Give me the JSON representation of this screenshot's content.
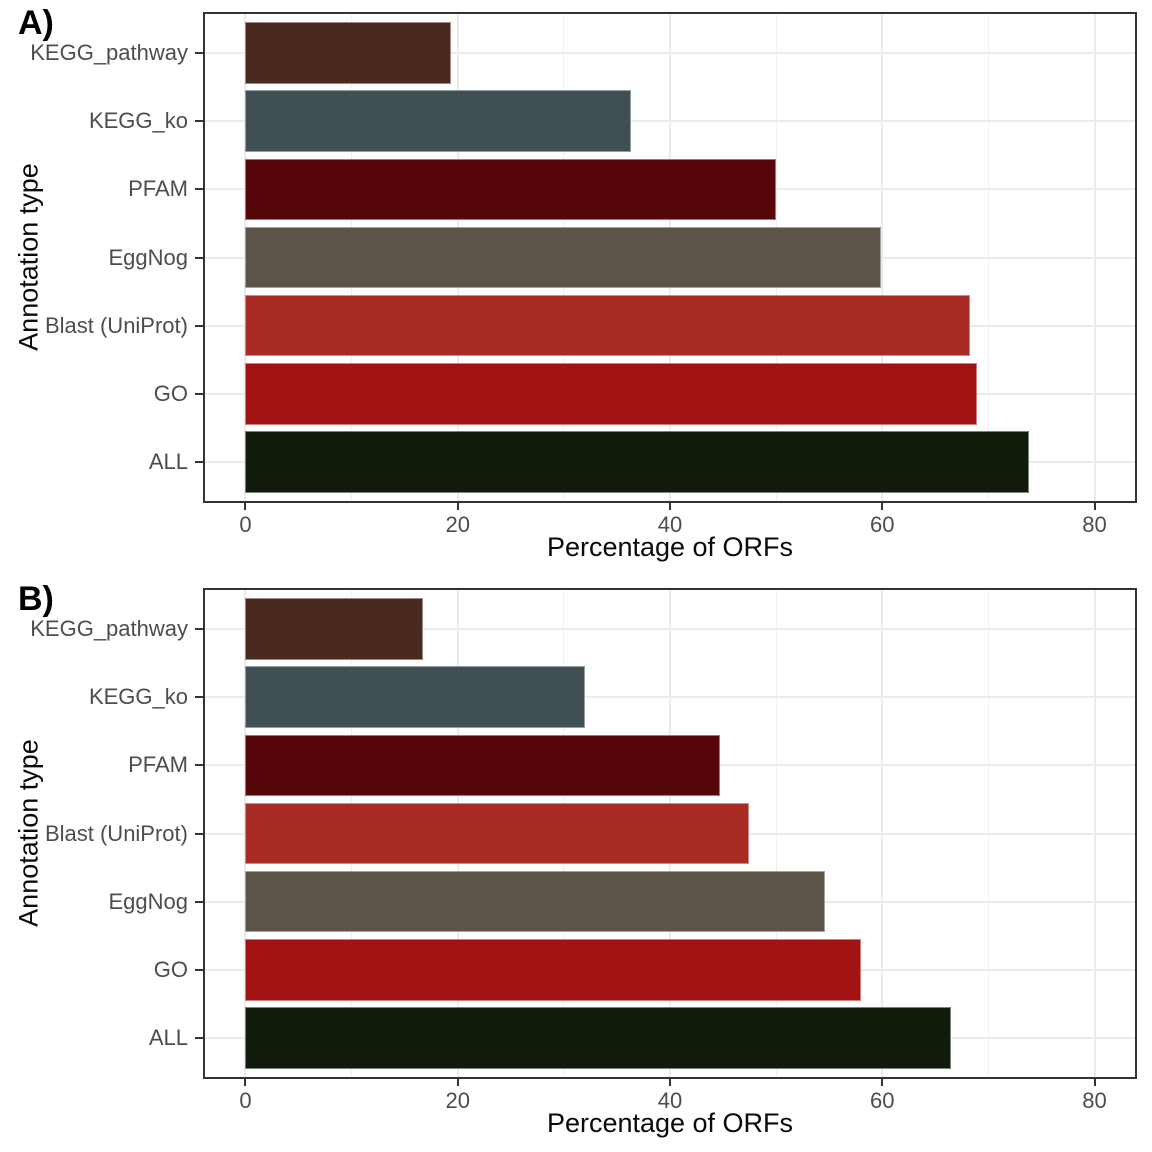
{
  "theme": {
    "panel_border_color": "#333333",
    "major_gridline_color": "#ebebeb",
    "minor_gridline_color": "#efefef",
    "tick_text_color": "#4d4d4d",
    "title_text_color": "#0a0a0a"
  },
  "chart_data": [
    {
      "type": "bar",
      "orientation": "horizontal",
      "panel_tag": "A)",
      "title": "",
      "xlabel": "Percentage of ORFs",
      "ylabel": "Annotation type",
      "xlim": [
        0,
        80
      ],
      "x_major_ticks": [
        0,
        20,
        40,
        60,
        80
      ],
      "x_tick_labels": [
        "0",
        "20",
        "40",
        "60",
        "80"
      ],
      "x_minor_gridlines": [
        10,
        30,
        50,
        70
      ],
      "grid": true,
      "legend": false,
      "categories_top_to_bottom": [
        "KEGG_pathway",
        "KEGG_ko",
        "PFAM",
        "EggNog",
        "Blast (UniProt)",
        "GO",
        "ALL"
      ],
      "values": [
        19.4,
        36.3,
        50.0,
        59.9,
        68.3,
        68.9,
        73.8
      ],
      "bar_colors": [
        "#4b2a1e",
        "#3f4f54",
        "#560509",
        "#5d5449",
        "#a82b23",
        "#a31313",
        "#111b0c"
      ]
    },
    {
      "type": "bar",
      "orientation": "horizontal",
      "panel_tag": "B)",
      "title": "",
      "xlabel": "Percentage of ORFs",
      "ylabel": "Annotation type",
      "xlim": [
        0,
        80
      ],
      "x_major_ticks": [
        0,
        20,
        40,
        60,
        80
      ],
      "x_tick_labels": [
        "0",
        "20",
        "40",
        "60",
        "80"
      ],
      "x_minor_gridlines": [
        10,
        30,
        50,
        70
      ],
      "grid": true,
      "legend": false,
      "categories_top_to_bottom": [
        "KEGG_pathway",
        "KEGG_ko",
        "PFAM",
        "Blast (UniProt)",
        "EggNog",
        "GO",
        "ALL"
      ],
      "values": [
        16.7,
        32.0,
        44.7,
        47.4,
        54.6,
        58.0,
        66.5
      ],
      "bar_colors": [
        "#4b2a1e",
        "#3f4f54",
        "#560509",
        "#a82b23",
        "#5d5449",
        "#a31313",
        "#111b0c"
      ]
    }
  ]
}
